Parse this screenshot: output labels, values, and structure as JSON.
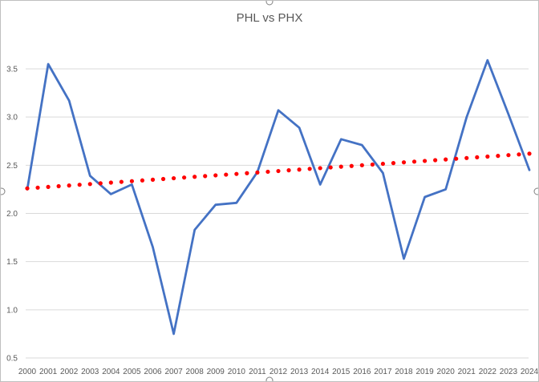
{
  "chart_data": {
    "type": "line",
    "title": "PHL vs PHX",
    "xlabel": "",
    "ylabel": "",
    "categories": [
      "2000",
      "2001",
      "2002",
      "2003",
      "2004",
      "2005",
      "2006",
      "2007",
      "2008",
      "2009",
      "2010",
      "2011",
      "2012",
      "2013",
      "2014",
      "2015",
      "2016",
      "2017",
      "2018",
      "2019",
      "2020",
      "2021",
      "2022",
      "2023",
      "2024"
    ],
    "series": [
      {
        "values": [
          2.25,
          3.55,
          3.17,
          2.39,
          2.2,
          2.3,
          1.65,
          0.75,
          1.83,
          2.09,
          2.11,
          2.43,
          3.07,
          2.89,
          2.3,
          2.77,
          2.71,
          2.42,
          1.53,
          2.17,
          2.25,
          3.0,
          3.59,
          3.03,
          2.45
        ],
        "color": "#4472C4"
      },
      {
        "trendline": true,
        "style": "dotted",
        "values": [
          2.26,
          2.275,
          2.29,
          2.305,
          2.32,
          2.335,
          2.35,
          2.365,
          2.38,
          2.395,
          2.41,
          2.425,
          2.44,
          2.455,
          2.47,
          2.485,
          2.5,
          2.515,
          2.53,
          2.545,
          2.56,
          2.575,
          2.59,
          2.605,
          2.62
        ],
        "color": "#FF0000"
      }
    ],
    "yticks": [
      "0.5",
      "1.0",
      "1.5",
      "2.0",
      "2.5",
      "3.0",
      "3.5"
    ],
    "ylim": [
      0.5,
      3.5
    ],
    "grid": true,
    "legend": "none"
  }
}
